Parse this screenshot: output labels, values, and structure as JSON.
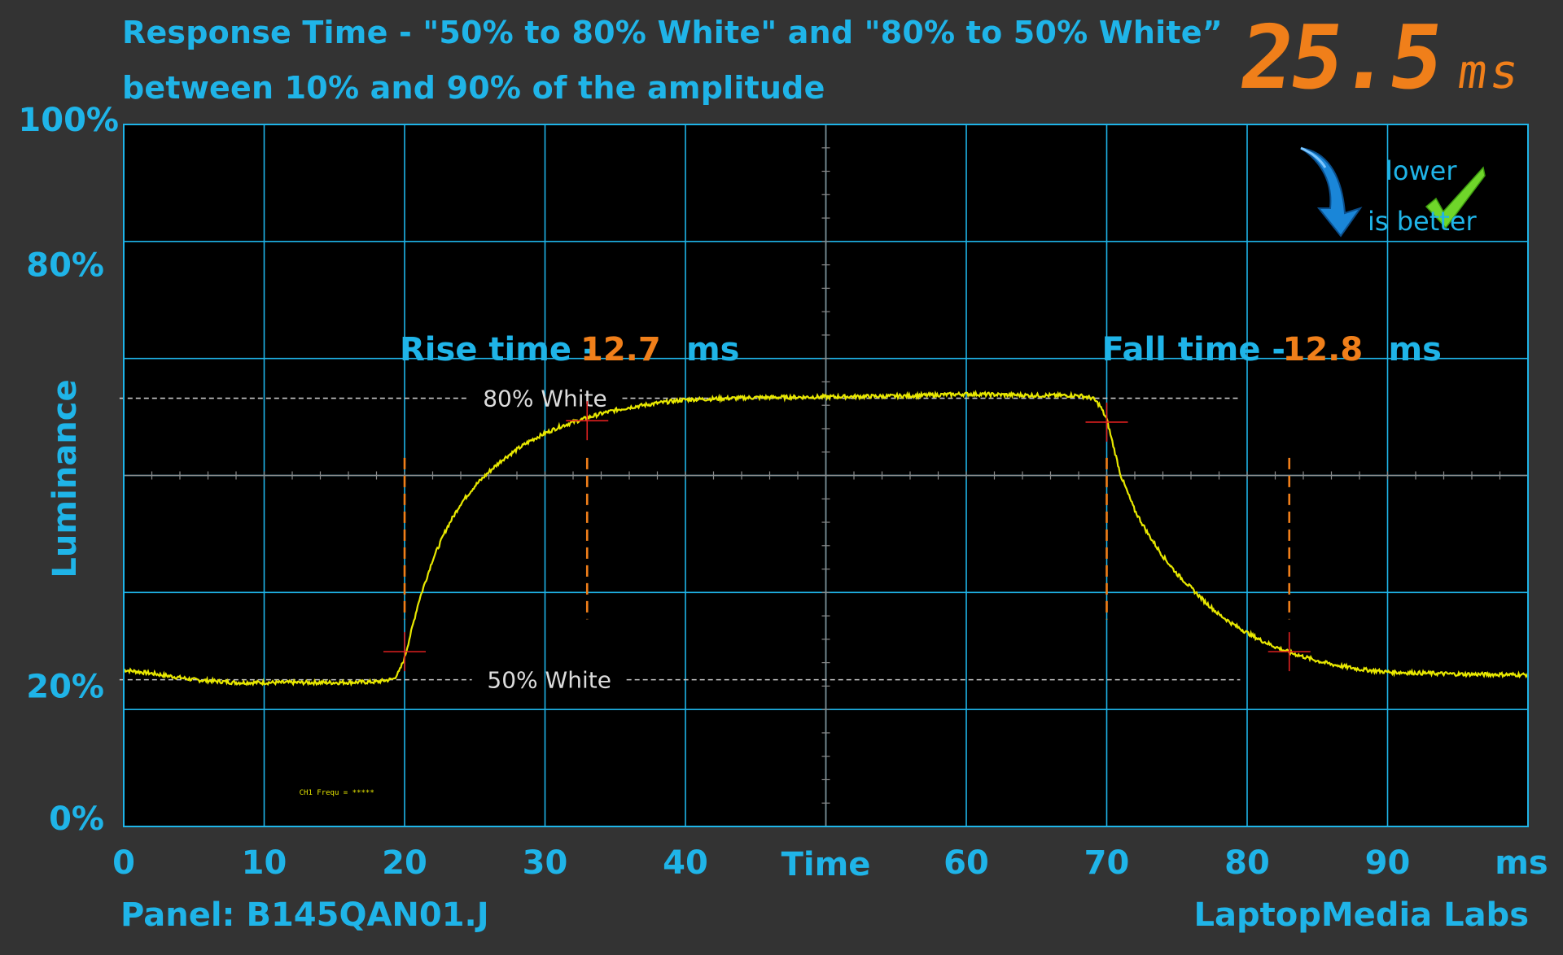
{
  "header": {
    "title_line1": "Response Time - \"50% to 80% White\" and \"80% to 50% White”",
    "title_line2": "between 10% and 90% of the amplitude",
    "readout_value": "25.5",
    "readout_unit": "ms"
  },
  "footer": {
    "panel": "Panel: B145QAN01.J",
    "brand": "LaptopMedia Labs"
  },
  "badge": {
    "line1": "lower",
    "line2": "is better",
    "arrow_icon": "blue-curved-down-arrow-icon",
    "check_icon": "green-checkmark-icon"
  },
  "colors": {
    "accent": "#1fb4e8",
    "value": "#f07f1a",
    "trace": "#e8e800",
    "background": "#333333",
    "plot": "#000000",
    "marker": "#e02020"
  },
  "chart_data": {
    "type": "line",
    "xlabel": "Time",
    "ylabel": "Luminance",
    "xlim": [
      0,
      100
    ],
    "ylim": [
      0,
      100
    ],
    "x_ticks": [
      {
        "value": 0,
        "label": "0"
      },
      {
        "value": 10,
        "label": "10"
      },
      {
        "value": 20,
        "label": "20"
      },
      {
        "value": 30,
        "label": "30"
      },
      {
        "value": 40,
        "label": "40"
      },
      {
        "value": 60,
        "label": "60"
      },
      {
        "value": 70,
        "label": "70"
      },
      {
        "value": 80,
        "label": "80"
      },
      {
        "value": 90,
        "label": "90"
      }
    ],
    "x_unit_label": "ms",
    "y_ticks": [
      {
        "value": 0,
        "label": "0%"
      },
      {
        "value": 20,
        "label": "20%"
      },
      {
        "value": 80,
        "label": "80%"
      },
      {
        "value": 100,
        "label": "100%"
      }
    ],
    "grid": true,
    "reference_lines": [
      {
        "label": "80% White",
        "y": 61
      },
      {
        "label": "50% White",
        "y": 20.9
      }
    ],
    "series": [
      {
        "x": [
          0,
          2,
          5,
          8,
          10,
          15,
          18,
          19.2,
          19.6,
          20,
          20.5,
          21,
          22,
          23,
          24,
          25,
          26,
          27,
          28,
          29,
          30,
          31,
          32,
          33,
          34,
          35,
          36,
          37,
          38,
          40,
          45,
          50,
          55,
          60,
          65,
          68,
          69,
          69.5,
          70,
          70.5,
          71,
          72,
          73,
          74,
          75,
          76,
          77,
          78,
          79,
          80,
          81,
          82,
          83,
          84,
          85,
          86,
          88,
          90,
          95,
          100
        ],
        "y": [
          22.3,
          21.8,
          20.9,
          20.5,
          20.5,
          20.5,
          20.6,
          21,
          22,
          24,
          28,
          32,
          38,
          42.5,
          46,
          48.5,
          50.5,
          52.3,
          53.7,
          55,
          56,
          56.9,
          57.6,
          58.2,
          58.8,
          59.3,
          59.7,
          60,
          60.3,
          60.8,
          61.1,
          61.2,
          61.3,
          61.6,
          61.4,
          61.4,
          61,
          60,
          58,
          54,
          50,
          45,
          41.5,
          38.5,
          36,
          34,
          32,
          30.2,
          28.8,
          27.6,
          26.5,
          25.6,
          24.8,
          24.2,
          23.6,
          23.1,
          22.4,
          22,
          21.7,
          21.6
        ]
      }
    ],
    "annotations": [
      {
        "label": "Rise time - ",
        "value": "12.7",
        "unit": "ms",
        "start": 20,
        "end": 33
      },
      {
        "label": "Fall time - ",
        "value": "12.8",
        "unit": "ms",
        "start": 70,
        "end": 83
      }
    ],
    "markers": [
      {
        "x": 20,
        "y": 24.9
      },
      {
        "x": 33,
        "y": 57.8
      },
      {
        "x": 70,
        "y": 57.6
      },
      {
        "x": 83,
        "y": 24.9
      }
    ],
    "status_text": "CH1 Frequ = *****"
  }
}
